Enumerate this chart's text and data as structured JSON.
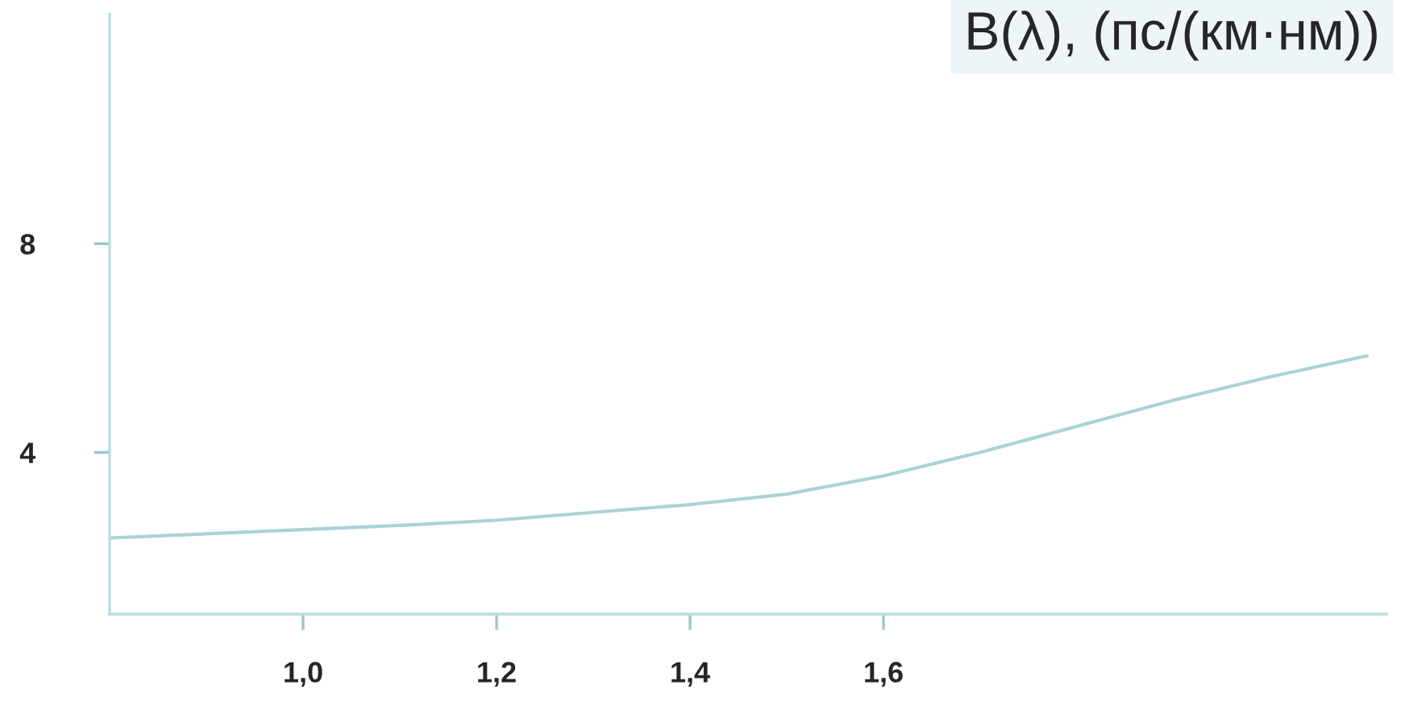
{
  "chart_data": {
    "type": "line",
    "title": "B(λ), (пс/(км·нм))",
    "x": [
      0.8,
      1.0,
      1.1,
      1.2,
      1.3,
      1.4,
      1.5,
      1.6,
      1.7,
      1.8,
      1.9,
      2.0,
      2.1
    ],
    "series": [
      {
        "color": "#a9d3d6",
        "values": [
          2.36,
          2.52,
          2.6,
          2.7,
          2.85,
          3.0,
          3.2,
          3.55,
          4.0,
          4.5,
          5.0,
          5.45,
          5.85
        ]
      }
    ],
    "xlim": [
      0.8,
      2.12
    ],
    "ylim": [
      0.9,
      12.4
    ],
    "xticks": [
      {
        "value": 1.0,
        "label": "1,0"
      },
      {
        "value": 1.2,
        "label": "1,2"
      },
      {
        "value": 1.4,
        "label": "1,4"
      },
      {
        "value": 1.6,
        "label": "1,6"
      }
    ],
    "yticks": [
      4,
      8
    ],
    "grid": false,
    "legend": false
  }
}
